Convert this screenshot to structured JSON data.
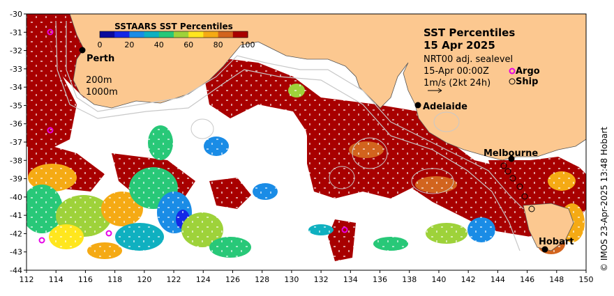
{
  "map": {
    "lon_ticks": [
      "112",
      "114",
      "116",
      "118",
      "120",
      "122",
      "124",
      "126",
      "128",
      "130",
      "132",
      "134",
      "136",
      "138",
      "140",
      "142",
      "144",
      "146",
      "148",
      "150"
    ],
    "lat_ticks": [
      "-30",
      "-31",
      "-32",
      "-33",
      "-34",
      "-35",
      "-36",
      "-37",
      "-38",
      "-39",
      "-40",
      "-41",
      "-42",
      "-43",
      "-44"
    ],
    "colors": {
      "land": "#fcc890",
      "extreme": "#a80000",
      "coastline": "#555555",
      "contour": "#c8c8c8"
    }
  },
  "colorbar": {
    "title": "SSTAARS SST Percentiles",
    "ticks": [
      "0",
      "20",
      "40",
      "60",
      "80",
      "100"
    ],
    "colors": [
      "#0a0a9c",
      "#1428e6",
      "#1a8ce6",
      "#0fb0c0",
      "#28c878",
      "#9ed23a",
      "#ffe61e",
      "#f5aa14",
      "#d2641e",
      "#a80000"
    ]
  },
  "panel": {
    "title_line1": "SST Percentiles",
    "title_line2": "15 Apr 2025",
    "line1": "NRT00 adj. sealevel",
    "line2": "15-Apr 00:00Z",
    "line3": "1m/s (2kt 24h)",
    "argo_label": "Argo",
    "ship_label": "Ship"
  },
  "contours": {
    "label_200": "200m",
    "label_1000": "1000m"
  },
  "cities": [
    {
      "id": "perth",
      "label": "Perth"
    },
    {
      "id": "adelaide",
      "label": "Adelaide"
    },
    {
      "id": "melbourne",
      "label": "Melbourne"
    },
    {
      "id": "hobart",
      "label": "Hobart"
    }
  ],
  "argo_floats": 5,
  "credit": "© IMOS 23-Apr-2025 13:48 Hobart"
}
